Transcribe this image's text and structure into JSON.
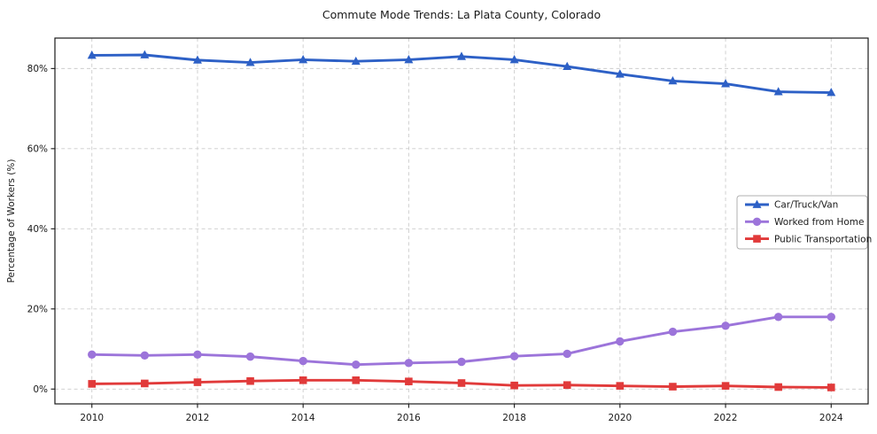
{
  "figure": {
    "title": "Commute Mode Trends: La Plata County, Colorado",
    "ylabel": "Percentage of Workers (%)"
  },
  "chart_data": {
    "type": "line",
    "title": "Commute Mode Trends: La Plata County, Colorado",
    "xlabel": "",
    "ylabel": "Percentage of Workers (%)",
    "x": [
      2010,
      2011,
      2012,
      2013,
      2014,
      2015,
      2016,
      2017,
      2018,
      2019,
      2020,
      2021,
      2022,
      2023,
      2024
    ],
    "series": [
      {
        "name": "Car/Truck/Van",
        "color": "#2d60c6",
        "marker": "triangle",
        "values": [
          83.3,
          83.4,
          82.1,
          81.5,
          82.2,
          81.8,
          82.2,
          83.0,
          82.2,
          80.5,
          78.6,
          76.9,
          76.2,
          74.2,
          74.0
        ]
      },
      {
        "name": "Worked from Home",
        "color": "#9c74da",
        "marker": "circle",
        "values": [
          8.6,
          8.4,
          8.6,
          8.1,
          7.0,
          6.1,
          6.5,
          6.8,
          8.2,
          8.8,
          11.9,
          14.3,
          15.8,
          18.0,
          18.0
        ]
      },
      {
        "name": "Public Transportation",
        "color": "#e13a3a",
        "marker": "square",
        "values": [
          1.3,
          1.4,
          1.7,
          2.0,
          2.2,
          2.2,
          1.9,
          1.5,
          0.9,
          1.0,
          0.8,
          0.6,
          0.8,
          0.5,
          0.4
        ]
      }
    ],
    "xticks": [
      2010,
      2012,
      2014,
      2016,
      2018,
      2020,
      2022,
      2024
    ],
    "xtick_labels": [
      "2010",
      "2012",
      "2014",
      "2016",
      "2018",
      "2020",
      "2022",
      "2024"
    ],
    "yticks": [
      0,
      20,
      40,
      60,
      80
    ],
    "ytick_labels": [
      "0%",
      "20%",
      "40%",
      "60%",
      "80%"
    ],
    "xlim": [
      2009.3,
      2024.7
    ],
    "ylim": [
      -3.7,
      87.6
    ],
    "grid": true,
    "grid_color": "#cccccc",
    "spine_color": "#1a1a1a",
    "legend": {
      "position": "center right",
      "border_color": "#b0b0b0",
      "background": "#ffffff"
    }
  }
}
